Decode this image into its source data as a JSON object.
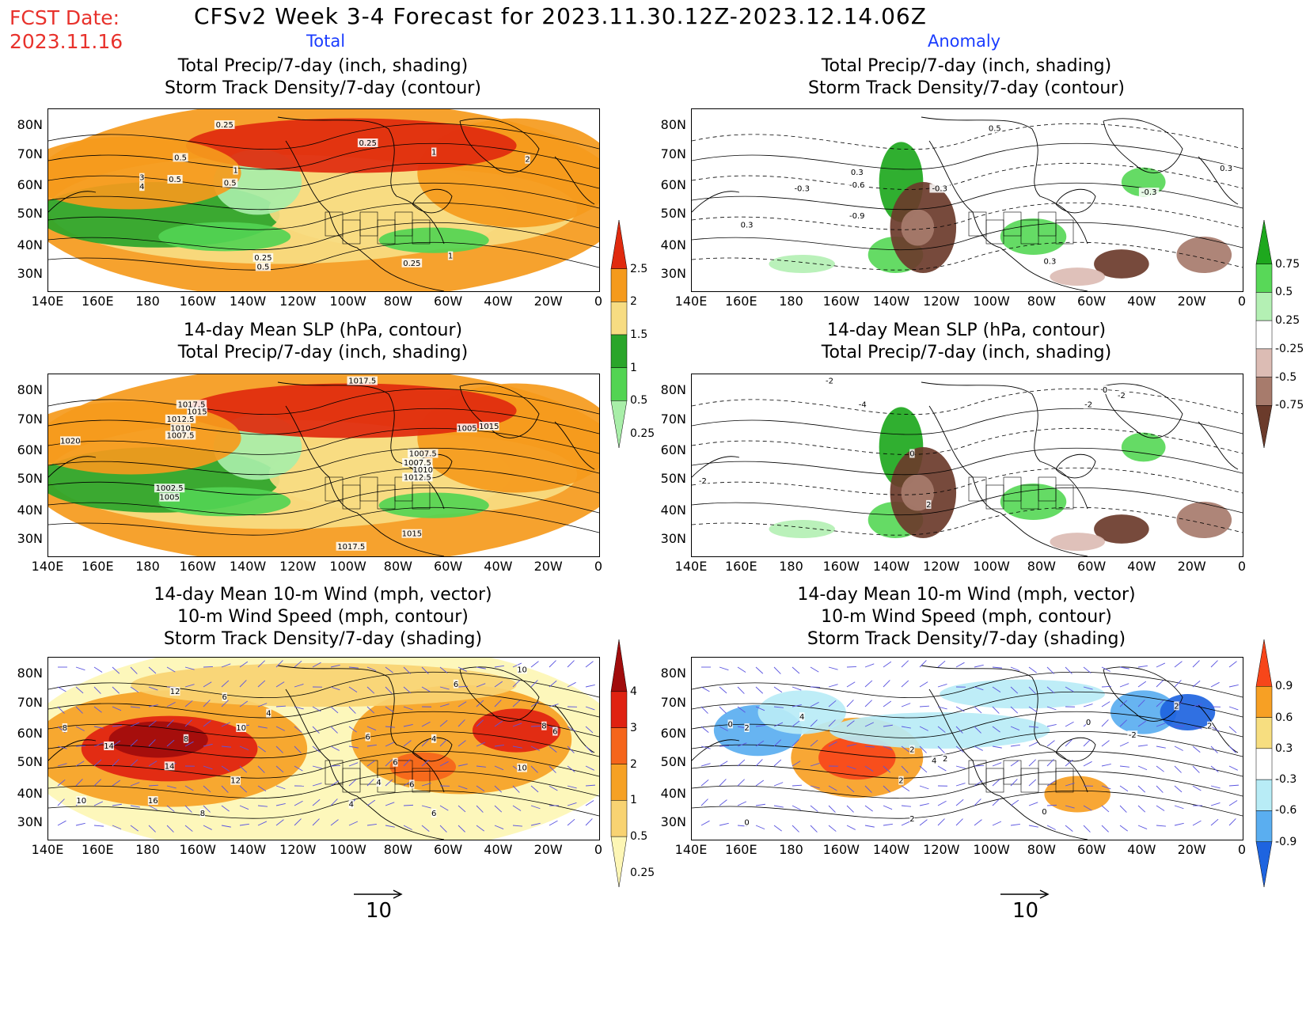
{
  "header": {
    "title": "CFSv2 Week 3-4 Forecast for 2023.11.30.12Z-2023.12.14.06Z",
    "fcst_label": "FCST Date:",
    "fcst_date": "2023.11.16",
    "col_total": "Total",
    "col_anomaly": "Anomaly"
  },
  "axes": {
    "lat": [
      "80N",
      "70N",
      "60N",
      "50N",
      "40N",
      "30N"
    ],
    "lon": [
      "140E",
      "160E",
      "180",
      "160W",
      "140W",
      "120W",
      "100W",
      "80W",
      "60W",
      "40W",
      "20W",
      "0"
    ]
  },
  "panels": {
    "p1": {
      "line1": "Total Precip/7-day (inch, shading)",
      "line2": "Storm Track Density/7-day (contour)"
    },
    "p2": {
      "line1": "Total Precip/7-day (inch, shading)",
      "line2": "Storm Track Density/7-day (contour)"
    },
    "p3": {
      "line1": "14-day Mean SLP (hPa, contour)",
      "line2": "Total Precip/7-day (inch, shading)"
    },
    "p4": {
      "line1": "14-day Mean SLP (hPa, contour)",
      "line2": "Total Precip/7-day (inch, shading)"
    },
    "p5": {
      "line1": "14-day Mean 10-m Wind (mph, vector)",
      "line2": "10-m Wind Speed (mph, contour)",
      "line3": "Storm Track Density/7-day (shading)"
    },
    "p6": {
      "line1": "14-day Mean 10-m Wind (mph, vector)",
      "line2": "10-m Wind Speed (mph, contour)",
      "line3": "Storm Track Density/7-day (shading)"
    }
  },
  "colorbars": {
    "precip_total": {
      "labels": [
        "2.5",
        "2",
        "1.5",
        "1",
        "0.5",
        "0.25"
      ],
      "colors": [
        "#e02a0e",
        "#f59a1c",
        "#f7dc82",
        "#2aa52a",
        "#52d452",
        "#a8eea8"
      ]
    },
    "precip_anom": {
      "labels": [
        "0.75",
        "0.5",
        "0.25",
        "-0.25",
        "-0.5",
        "-0.75"
      ],
      "colors": [
        "#1ea81e",
        "#58d858",
        "#b4f0b4",
        "#ffffff",
        "#dcbcb4",
        "#a77b6c",
        "#6b3b2b"
      ]
    },
    "storm_total": {
      "labels": [
        "4",
        "3",
        "2",
        "1",
        "0.5",
        "0.25"
      ],
      "colors": [
        "#a10c0c",
        "#df2211",
        "#f5651b",
        "#f6a124",
        "#f8d372",
        "#fdf6b5"
      ]
    },
    "storm_anom": {
      "labels": [
        "0.9",
        "0.6",
        "0.3",
        "-0.3",
        "-0.6",
        "-0.9"
      ],
      "colors": [
        "#f7461a",
        "#f7a024",
        "#f7de80",
        "#ffffff",
        "#b8ecf6",
        "#5aaef0",
        "#1e64e0"
      ]
    }
  },
  "contour_labels": {
    "p1": [
      "0.25",
      "0.5",
      "0.25",
      "1",
      "0.5",
      "1",
      "2",
      "3",
      "4",
      "0.5",
      "0.25",
      "0.5",
      "0.25",
      "1"
    ],
    "p2": [
      "0.5",
      "0.3",
      "-0.3",
      "-0.6",
      "-0.9",
      "0.3",
      "0.3",
      "-0.3",
      "0.3",
      "-0.3"
    ],
    "p3": [
      "1017.5",
      "1017.5",
      "1015",
      "1012.5",
      "1010",
      "1007.5",
      "1005",
      "1020",
      "1007.5",
      "1002.5",
      "1005",
      "1015",
      "1007.5",
      "1010",
      "1012.5",
      "1015",
      "1017.5"
    ],
    "p4": [
      "-2",
      "-4",
      "0",
      "-2",
      "-2",
      "-2",
      "2",
      "0"
    ],
    "p5": [
      "12",
      "6",
      "4",
      "8",
      "10",
      "14",
      "8",
      "14",
      "12",
      "16",
      "10",
      "8",
      "6",
      "4",
      "10",
      "6",
      "4",
      "6",
      "4",
      "6",
      "10",
      "8",
      "6",
      "6"
    ],
    "p6": [
      "0",
      "2",
      "4",
      "2",
      "2",
      "2",
      "0",
      "-2",
      "2",
      "2",
      "0",
      "4",
      "2",
      "0"
    ]
  },
  "vector_scale": {
    "left": "10",
    "right": "10"
  }
}
